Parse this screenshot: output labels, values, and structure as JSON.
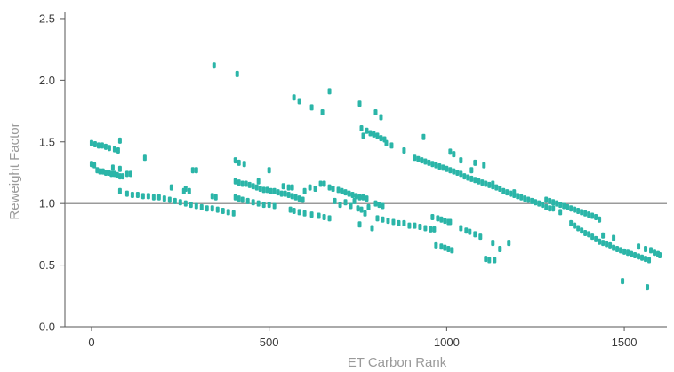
{
  "chart_data": {
    "type": "scatter",
    "title": "",
    "xlabel": "ET Carbon Rank",
    "ylabel": "Reweight Factor",
    "xlim": [
      -75,
      1620
    ],
    "ylim": [
      0,
      2.55
    ],
    "xticks": [
      0,
      500,
      1000,
      1500
    ],
    "xtick_labels": [
      "0",
      "500",
      "1000",
      "1500"
    ],
    "yticks": [
      0,
      0.5,
      1.0,
      1.5,
      2.0,
      2.5
    ],
    "ytick_labels": [
      "0.0",
      "0.5",
      "1.0",
      "1.5",
      "2.0",
      "2.5"
    ],
    "reference_line": {
      "y": 1.0,
      "color": "#888888"
    },
    "grid": false,
    "legend": "none",
    "marker_color": "#2bb5a8",
    "series": [
      {
        "points": [
          [
            0,
            1.49
          ],
          [
            10,
            1.48
          ],
          [
            20,
            1.47
          ],
          [
            30,
            1.47
          ],
          [
            40,
            1.46
          ],
          [
            50,
            1.45
          ],
          [
            65,
            1.44
          ],
          [
            75,
            1.43
          ],
          [
            80,
            1.51
          ],
          [
            0,
            1.32
          ],
          [
            8,
            1.31
          ],
          [
            16,
            1.27
          ],
          [
            24,
            1.26
          ],
          [
            32,
            1.26
          ],
          [
            40,
            1.25
          ],
          [
            48,
            1.25
          ],
          [
            56,
            1.24
          ],
          [
            64,
            1.24
          ],
          [
            72,
            1.23
          ],
          [
            80,
            1.22
          ],
          [
            88,
            1.22
          ],
          [
            100,
            1.24
          ],
          [
            110,
            1.24
          ],
          [
            150,
            1.37
          ],
          [
            60,
            1.29
          ],
          [
            80,
            1.28
          ],
          [
            80,
            1.1
          ],
          [
            100,
            1.08
          ],
          [
            115,
            1.07
          ],
          [
            130,
            1.07
          ],
          [
            145,
            1.06
          ],
          [
            160,
            1.06
          ],
          [
            175,
            1.05
          ],
          [
            190,
            1.05
          ],
          [
            205,
            1.04
          ],
          [
            220,
            1.03
          ],
          [
            235,
            1.02
          ],
          [
            250,
            1.01
          ],
          [
            265,
            1.0
          ],
          [
            280,
            0.99
          ],
          [
            295,
            0.98
          ],
          [
            310,
            0.97
          ],
          [
            325,
            0.96
          ],
          [
            340,
            0.96
          ],
          [
            355,
            0.95
          ],
          [
            370,
            0.94
          ],
          [
            385,
            0.93
          ],
          [
            400,
            0.92
          ],
          [
            225,
            1.13
          ],
          [
            265,
            1.12
          ],
          [
            260,
            1.1
          ],
          [
            275,
            1.1
          ],
          [
            285,
            1.27
          ],
          [
            295,
            1.27
          ],
          [
            340,
            1.06
          ],
          [
            350,
            1.05
          ],
          [
            345,
            2.12
          ],
          [
            410,
            2.05
          ],
          [
            405,
            1.35
          ],
          [
            415,
            1.33
          ],
          [
            430,
            1.32
          ],
          [
            405,
            1.18
          ],
          [
            415,
            1.17
          ],
          [
            425,
            1.16
          ],
          [
            435,
            1.16
          ],
          [
            445,
            1.15
          ],
          [
            455,
            1.14
          ],
          [
            465,
            1.13
          ],
          [
            475,
            1.12
          ],
          [
            485,
            1.11
          ],
          [
            495,
            1.11
          ],
          [
            505,
            1.1
          ],
          [
            515,
            1.1
          ],
          [
            525,
            1.09
          ],
          [
            535,
            1.08
          ],
          [
            545,
            1.08
          ],
          [
            555,
            1.07
          ],
          [
            565,
            1.06
          ],
          [
            575,
            1.05
          ],
          [
            585,
            1.04
          ],
          [
            595,
            1.03
          ],
          [
            405,
            1.05
          ],
          [
            415,
            1.04
          ],
          [
            425,
            1.03
          ],
          [
            440,
            1.02
          ],
          [
            455,
            1.01
          ],
          [
            470,
            1.0
          ],
          [
            485,
            0.99
          ],
          [
            500,
            0.99
          ],
          [
            515,
            0.98
          ],
          [
            470,
            1.18
          ],
          [
            500,
            1.27
          ],
          [
            540,
            1.14
          ],
          [
            555,
            1.13
          ],
          [
            565,
            1.13
          ],
          [
            560,
            0.95
          ],
          [
            570,
            0.94
          ],
          [
            585,
            0.93
          ],
          [
            600,
            0.92
          ],
          [
            620,
            0.91
          ],
          [
            640,
            0.9
          ],
          [
            655,
            0.89
          ],
          [
            670,
            0.88
          ],
          [
            585,
            1.83
          ],
          [
            570,
            1.86
          ],
          [
            620,
            1.78
          ],
          [
            650,
            1.74
          ],
          [
            670,
            1.91
          ],
          [
            755,
            1.81
          ],
          [
            800,
            1.74
          ],
          [
            815,
            1.7
          ],
          [
            600,
            1.1
          ],
          [
            615,
            1.13
          ],
          [
            630,
            1.12
          ],
          [
            645,
            1.16
          ],
          [
            655,
            1.16
          ],
          [
            670,
            1.13
          ],
          [
            680,
            1.12
          ],
          [
            695,
            1.11
          ],
          [
            705,
            1.1
          ],
          [
            715,
            1.09
          ],
          [
            725,
            1.08
          ],
          [
            735,
            1.07
          ],
          [
            745,
            1.06
          ],
          [
            755,
            1.05
          ],
          [
            765,
            1.05
          ],
          [
            775,
            1.04
          ],
          [
            685,
            1.02
          ],
          [
            700,
            0.99
          ],
          [
            715,
            1.01
          ],
          [
            730,
            0.98
          ],
          [
            740,
            1.02
          ],
          [
            750,
            0.96
          ],
          [
            760,
            0.95
          ],
          [
            770,
            0.92
          ],
          [
            755,
            0.83
          ],
          [
            780,
            0.97
          ],
          [
            790,
            0.8
          ],
          [
            800,
            1.0
          ],
          [
            810,
            0.99
          ],
          [
            820,
            0.98
          ],
          [
            760,
            1.61
          ],
          [
            765,
            1.55
          ],
          [
            775,
            1.59
          ],
          [
            785,
            1.57
          ],
          [
            795,
            1.56
          ],
          [
            805,
            1.55
          ],
          [
            815,
            1.53
          ],
          [
            825,
            1.52
          ],
          [
            830,
            1.49
          ],
          [
            845,
            1.47
          ],
          [
            880,
            1.43
          ],
          [
            935,
            1.54
          ],
          [
            805,
            0.88
          ],
          [
            820,
            0.87
          ],
          [
            835,
            0.86
          ],
          [
            850,
            0.85
          ],
          [
            865,
            0.84
          ],
          [
            880,
            0.84
          ],
          [
            895,
            0.82
          ],
          [
            910,
            0.82
          ],
          [
            925,
            0.81
          ],
          [
            940,
            0.8
          ],
          [
            955,
            0.79
          ],
          [
            965,
            0.79
          ],
          [
            960,
            0.89
          ],
          [
            975,
            0.88
          ],
          [
            985,
            0.87
          ],
          [
            995,
            0.86
          ],
          [
            1005,
            0.85
          ],
          [
            1010,
            0.85
          ],
          [
            910,
            1.37
          ],
          [
            920,
            1.36
          ],
          [
            930,
            1.35
          ],
          [
            940,
            1.34
          ],
          [
            950,
            1.33
          ],
          [
            960,
            1.32
          ],
          [
            970,
            1.31
          ],
          [
            980,
            1.3
          ],
          [
            990,
            1.29
          ],
          [
            1000,
            1.28
          ],
          [
            1010,
            1.27
          ],
          [
            1020,
            1.26
          ],
          [
            1030,
            1.25
          ],
          [
            1040,
            1.24
          ],
          [
            1050,
            1.22
          ],
          [
            1060,
            1.21
          ],
          [
            1070,
            1.2
          ],
          [
            1080,
            1.19
          ],
          [
            1090,
            1.18
          ],
          [
            1100,
            1.17
          ],
          [
            1110,
            1.16
          ],
          [
            1120,
            1.15
          ],
          [
            1130,
            1.14
          ],
          [
            1140,
            1.13
          ],
          [
            1150,
            1.12
          ],
          [
            1160,
            1.1
          ],
          [
            1170,
            1.09
          ],
          [
            1180,
            1.08
          ],
          [
            1190,
            1.07
          ],
          [
            1200,
            1.06
          ],
          [
            1210,
            1.05
          ],
          [
            1220,
            1.04
          ],
          [
            1230,
            1.03
          ],
          [
            1240,
            1.02
          ],
          [
            1250,
            1.01
          ],
          [
            1260,
            1.0
          ],
          [
            1270,
            0.99
          ],
          [
            1280,
            0.97
          ],
          [
            1290,
            0.96
          ],
          [
            1010,
            1.42
          ],
          [
            1020,
            1.4
          ],
          [
            1040,
            1.35
          ],
          [
            1070,
            1.27
          ],
          [
            1080,
            1.33
          ],
          [
            1105,
            1.31
          ],
          [
            1130,
            1.16
          ],
          [
            1190,
            1.09
          ],
          [
            970,
            0.66
          ],
          [
            985,
            0.65
          ],
          [
            995,
            0.64
          ],
          [
            1005,
            0.63
          ],
          [
            1015,
            0.62
          ],
          [
            1040,
            0.8
          ],
          [
            1055,
            0.78
          ],
          [
            1065,
            0.77
          ],
          [
            1080,
            0.75
          ],
          [
            1095,
            0.73
          ],
          [
            1110,
            0.55
          ],
          [
            1120,
            0.54
          ],
          [
            1135,
            0.54
          ],
          [
            1130,
            0.68
          ],
          [
            1150,
            0.63
          ],
          [
            1175,
            0.68
          ],
          [
            1280,
            1.03
          ],
          [
            1290,
            1.02
          ],
          [
            1300,
            1.01
          ],
          [
            1310,
            1.0
          ],
          [
            1320,
            0.99
          ],
          [
            1330,
            0.98
          ],
          [
            1340,
            0.97
          ],
          [
            1350,
            0.96
          ],
          [
            1360,
            0.95
          ],
          [
            1370,
            0.94
          ],
          [
            1380,
            0.93
          ],
          [
            1390,
            0.92
          ],
          [
            1400,
            0.91
          ],
          [
            1410,
            0.9
          ],
          [
            1420,
            0.89
          ],
          [
            1430,
            0.87
          ],
          [
            1300,
            0.96
          ],
          [
            1320,
            0.93
          ],
          [
            1350,
            0.84
          ],
          [
            1360,
            0.82
          ],
          [
            1370,
            0.8
          ],
          [
            1380,
            0.78
          ],
          [
            1390,
            0.76
          ],
          [
            1400,
            0.75
          ],
          [
            1410,
            0.73
          ],
          [
            1420,
            0.71
          ],
          [
            1430,
            0.69
          ],
          [
            1440,
            0.68
          ],
          [
            1450,
            0.67
          ],
          [
            1460,
            0.66
          ],
          [
            1470,
            0.64
          ],
          [
            1480,
            0.63
          ],
          [
            1490,
            0.62
          ],
          [
            1500,
            0.61
          ],
          [
            1510,
            0.6
          ],
          [
            1520,
            0.59
          ],
          [
            1530,
            0.58
          ],
          [
            1540,
            0.57
          ],
          [
            1550,
            0.56
          ],
          [
            1560,
            0.55
          ],
          [
            1570,
            0.54
          ],
          [
            1470,
            0.72
          ],
          [
            1440,
            0.74
          ],
          [
            1540,
            0.65
          ],
          [
            1560,
            0.63
          ],
          [
            1575,
            0.62
          ],
          [
            1585,
            0.6
          ],
          [
            1595,
            0.59
          ],
          [
            1600,
            0.58
          ],
          [
            1495,
            0.37
          ],
          [
            1565,
            0.32
          ]
        ]
      }
    ]
  }
}
